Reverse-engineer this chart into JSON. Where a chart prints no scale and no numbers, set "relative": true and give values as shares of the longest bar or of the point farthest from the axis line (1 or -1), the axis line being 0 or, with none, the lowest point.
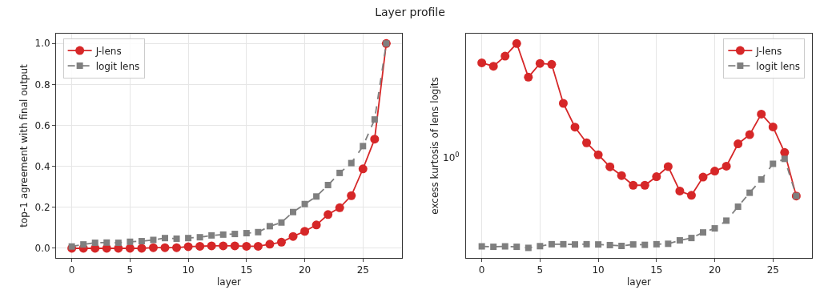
{
  "chart_data": [
    {
      "type": "line",
      "title": "Layer profile",
      "xlabel": "layer",
      "ylabel": "top-1 agreement with final output",
      "x": [
        0,
        1,
        2,
        3,
        4,
        5,
        6,
        7,
        8,
        9,
        10,
        11,
        12,
        13,
        14,
        15,
        16,
        17,
        18,
        19,
        20,
        21,
        22,
        23,
        24,
        25,
        26,
        27
      ],
      "xlim": [
        -1.35,
        28.35
      ],
      "xticks": [
        0,
        5,
        10,
        15,
        20,
        25
      ],
      "ylim": [
        -0.047,
        1.048
      ],
      "yticks": [
        {
          "value": 0,
          "label": "0.0"
        },
        0.2,
        0.4,
        0.6,
        0.8,
        {
          "value": 1,
          "label": "1.0"
        }
      ],
      "grid": true,
      "legend": "top left",
      "series": [
        {
          "name": "J-lens",
          "color": "#d62728",
          "marker": "circle",
          "line_style": "solid",
          "values": [
            0,
            0,
            0,
            0,
            0,
            0,
            0,
            0.003,
            0.003,
            0.003,
            0.008,
            0.01,
            0.012,
            0.012,
            0.012,
            0.01,
            0.01,
            0.02,
            0.03,
            0.058,
            0.083,
            0.114,
            0.165,
            0.198,
            0.257,
            0.388,
            0.533,
            1
          ]
        },
        {
          "name": "logit lens",
          "color": "#7f7f7f",
          "marker": "square",
          "line_style": "dashed",
          "values": [
            0.009,
            0.019,
            0.027,
            0.028,
            0.027,
            0.032,
            0.035,
            0.041,
            0.05,
            0.047,
            0.05,
            0.054,
            0.063,
            0.067,
            0.07,
            0.074,
            0.079,
            0.108,
            0.126,
            0.177,
            0.216,
            0.253,
            0.309,
            0.368,
            0.416,
            0.499,
            0.629,
            1
          ]
        }
      ]
    },
    {
      "type": "line",
      "relative": true,
      "xlabel": "layer",
      "ylabel": "excess kurtosis of lens logits",
      "x": [
        0,
        1,
        2,
        3,
        4,
        5,
        6,
        7,
        8,
        9,
        10,
        11,
        12,
        13,
        14,
        15,
        16,
        17,
        18,
        19,
        20,
        21,
        22,
        23,
        24,
        25,
        26,
        27
      ],
      "xlim": [
        -1.35,
        28.35
      ],
      "xticks": [
        0,
        5,
        10,
        15,
        20,
        25
      ],
      "grid": true,
      "legend": "top right",
      "annotations": [
        "10$^{0}$"
      ],
      "series": [
        {
          "name": "J-lens",
          "color": "#d62728",
          "marker": "circle",
          "line_style": "solid",
          "values": [
            0.91,
            0.894,
            0.941,
            1,
            0.843,
            0.907,
            0.903,
            0.721,
            0.61,
            0.537,
            0.481,
            0.425,
            0.384,
            0.339,
            0.339,
            0.379,
            0.426,
            0.312,
            0.292,
            0.377,
            0.405,
            0.428,
            0.532,
            0.575,
            0.671,
            0.611,
            0.492,
            0.289
          ]
        },
        {
          "name": "logit lens",
          "color": "#7f7f7f",
          "marker": "square",
          "line_style": "dashed",
          "values": [
            0.054,
            0.052,
            0.054,
            0.052,
            0.047,
            0.055,
            0.064,
            0.064,
            0.063,
            0.064,
            0.063,
            0.06,
            0.056,
            0.063,
            0.061,
            0.064,
            0.066,
            0.082,
            0.093,
            0.119,
            0.138,
            0.174,
            0.239,
            0.304,
            0.366,
            0.439,
            0.462,
            0.289
          ]
        }
      ]
    }
  ]
}
